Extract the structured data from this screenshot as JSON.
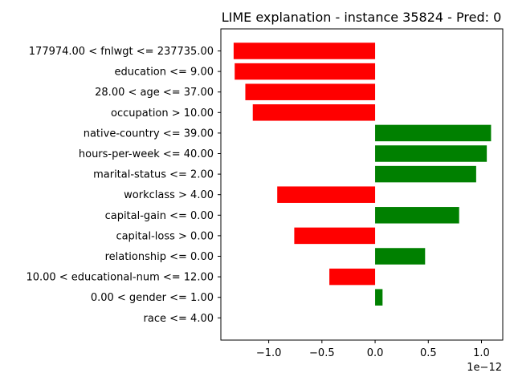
{
  "chart_data": {
    "type": "bar",
    "orientation": "horizontal",
    "title": "LIME explanation - instance 35824 - Pred: 0",
    "xlabel": "",
    "ylabel": "",
    "x_scale_label": "1e−12",
    "xlim": [
      -1.45,
      1.2
    ],
    "xticks": [
      -1.0,
      -0.5,
      0.0,
      0.5,
      1.0
    ],
    "xtick_labels": [
      "−1.0",
      "−0.5",
      "0.0",
      "0.5",
      "1.0"
    ],
    "grid": false,
    "legend": "none",
    "colors": {
      "positive": "#008000",
      "negative": "#ff0000"
    },
    "categories": [
      "177974.00 < fnlwgt <= 237735.00",
      "education <= 9.00",
      "28.00 < age <= 37.00",
      "occupation > 10.00",
      "native-country <= 39.00",
      "hours-per-week <= 40.00",
      "marital-status <= 2.00",
      "workclass > 4.00",
      "capital-gain <= 0.00",
      "capital-loss > 0.00",
      "relationship <= 0.00",
      "10.00 < educational-num <= 12.00",
      "0.00 < gender <= 1.00",
      "race <= 4.00"
    ],
    "values": [
      -1.33,
      -1.32,
      -1.22,
      -1.15,
      1.09,
      1.05,
      0.95,
      -0.92,
      0.79,
      -0.76,
      0.47,
      -0.43,
      0.07,
      0.0
    ]
  }
}
